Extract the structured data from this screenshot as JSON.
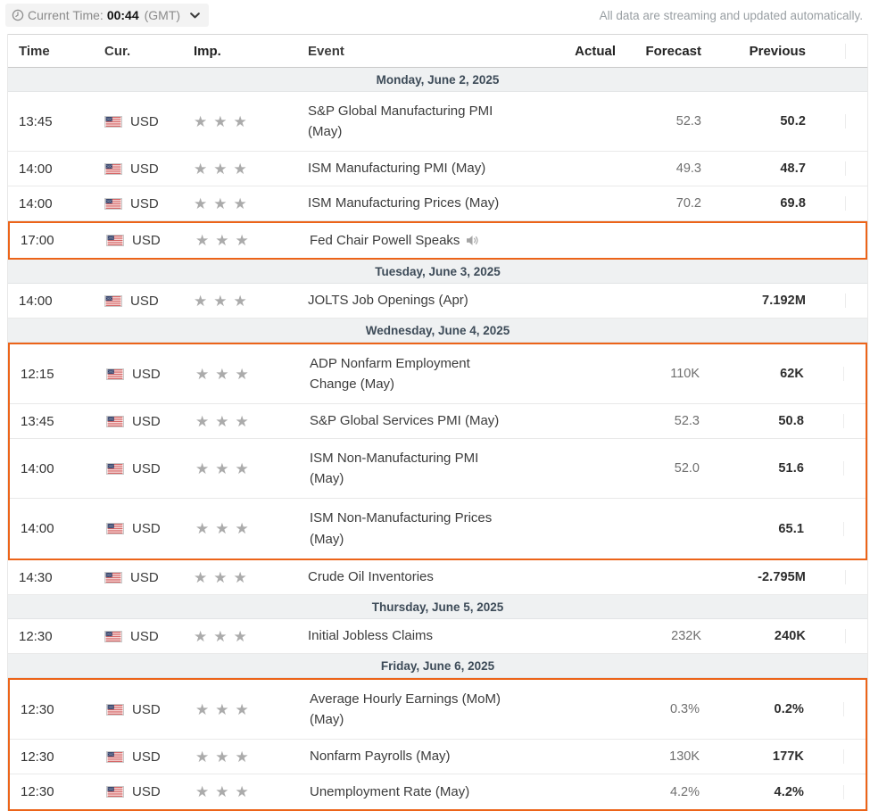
{
  "toolbar": {
    "current_time_label": "Current Time:",
    "current_time_value": "00:44",
    "timezone": "(GMT)",
    "streaming_note": "All data are streaming and updated automatically."
  },
  "table": {
    "headers": {
      "time": "Time",
      "cur": "Cur.",
      "imp": "Imp.",
      "event": "Event",
      "actual": "Actual",
      "forecast": "Forecast",
      "previous": "Previous"
    },
    "sections": [
      {
        "day": "Monday, June 2, 2025",
        "blocks": [
          {
            "highlight": false,
            "rows": [
              {
                "time": "13:45",
                "cur": "USD",
                "stars": 3,
                "event": "S&P Global Manufacturing PMI",
                "event2": "(May)",
                "actual": "",
                "forecast": "52.3",
                "previous": "50.2"
              },
              {
                "time": "14:00",
                "cur": "USD",
                "stars": 3,
                "event": "ISM Manufacturing PMI (May)",
                "actual": "",
                "forecast": "49.3",
                "previous": "48.7"
              },
              {
                "time": "14:00",
                "cur": "USD",
                "stars": 3,
                "event": "ISM Manufacturing Prices (May)",
                "actual": "",
                "forecast": "70.2",
                "previous": "69.8"
              }
            ]
          },
          {
            "highlight": true,
            "rows": [
              {
                "time": "17:00",
                "cur": "USD",
                "stars": 3,
                "event": "Fed Chair Powell Speaks",
                "speaker": true,
                "actual": "",
                "forecast": "",
                "previous": ""
              }
            ]
          }
        ]
      },
      {
        "day": "Tuesday, June 3, 2025",
        "blocks": [
          {
            "highlight": false,
            "rows": [
              {
                "time": "14:00",
                "cur": "USD",
                "stars": 3,
                "event": "JOLTS Job Openings (Apr)",
                "actual": "",
                "forecast": "",
                "previous": "7.192M"
              }
            ]
          }
        ]
      },
      {
        "day": "Wednesday, June 4, 2025",
        "blocks": [
          {
            "highlight": true,
            "rows": [
              {
                "time": "12:15",
                "cur": "USD",
                "stars": 3,
                "event": "ADP Nonfarm Employment",
                "event2": "Change (May)",
                "actual": "",
                "forecast": "110K",
                "previous": "62K"
              },
              {
                "time": "13:45",
                "cur": "USD",
                "stars": 3,
                "event": "S&P Global Services PMI (May)",
                "actual": "",
                "forecast": "52.3",
                "previous": "50.8"
              },
              {
                "time": "14:00",
                "cur": "USD",
                "stars": 3,
                "event": "ISM Non-Manufacturing PMI",
                "event2": "(May)",
                "actual": "",
                "forecast": "52.0",
                "previous": "51.6"
              },
              {
                "time": "14:00",
                "cur": "USD",
                "stars": 3,
                "event": "ISM Non-Manufacturing Prices",
                "event2": "(May)",
                "actual": "",
                "forecast": "",
                "previous": "65.1"
              }
            ]
          },
          {
            "highlight": false,
            "rows": [
              {
                "time": "14:30",
                "cur": "USD",
                "stars": 3,
                "event": "Crude Oil Inventories",
                "actual": "",
                "forecast": "",
                "previous": "-2.795M"
              }
            ]
          }
        ]
      },
      {
        "day": "Thursday, June 5, 2025",
        "blocks": [
          {
            "highlight": false,
            "rows": [
              {
                "time": "12:30",
                "cur": "USD",
                "stars": 3,
                "event": "Initial Jobless Claims",
                "actual": "",
                "forecast": "232K",
                "previous": "240K"
              }
            ]
          }
        ]
      },
      {
        "day": "Friday, June 6, 2025",
        "blocks": [
          {
            "highlight": true,
            "rows": [
              {
                "time": "12:30",
                "cur": "USD",
                "stars": 3,
                "event": "Average Hourly Earnings (MoM)",
                "event2": "(May)",
                "actual": "",
                "forecast": "0.3%",
                "previous": "0.2%"
              },
              {
                "time": "12:30",
                "cur": "USD",
                "stars": 3,
                "event": "Nonfarm Payrolls (May)",
                "actual": "",
                "forecast": "130K",
                "previous": "177K"
              },
              {
                "time": "12:30",
                "cur": "USD",
                "stars": 3,
                "event": "Unemployment Rate (May)",
                "actual": "",
                "forecast": "4.2%",
                "previous": "4.2%"
              }
            ]
          }
        ]
      }
    ]
  },
  "icons": {
    "clock": "clock-icon",
    "chevron_down": "chevron-down-icon",
    "us_flag": "us-flag-icon",
    "importance_star": "★",
    "speaker": "speaker-icon"
  },
  "colors": {
    "highlight_border": "#ec6419",
    "day_header_bg": "#eff1f2",
    "day_header_text": "#3d4b58",
    "forecast_text": "#6f6f6f",
    "previous_text": "#2d2d2d",
    "star": "#ababab"
  }
}
